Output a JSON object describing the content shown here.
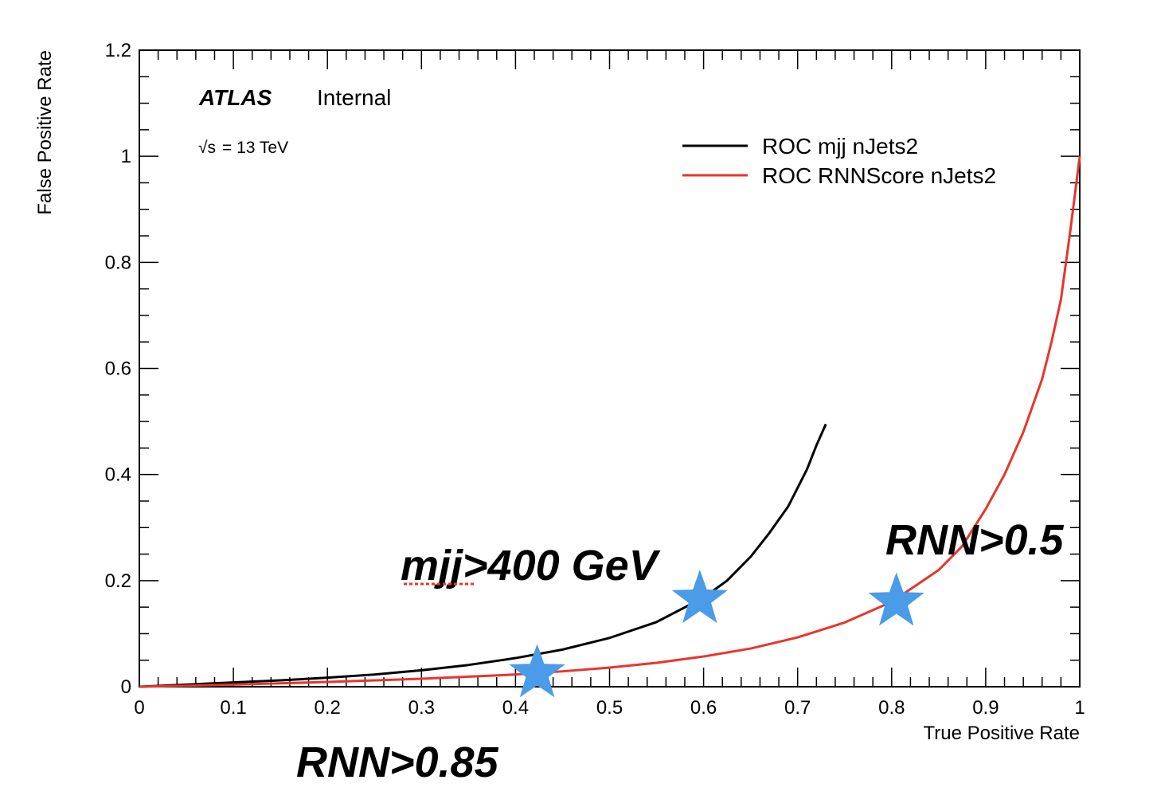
{
  "chart_data": {
    "type": "line",
    "xlabel": "True Positive Rate",
    "ylabel": "False Positive Rate",
    "xlim": [
      0,
      1
    ],
    "ylim": [
      0,
      1.2
    ],
    "x_ticks": [
      "0",
      "0.1",
      "0.2",
      "0.3",
      "0.4",
      "0.5",
      "0.6",
      "0.7",
      "0.8",
      "0.9",
      "1"
    ],
    "y_ticks": [
      "0",
      "0.2",
      "0.4",
      "0.6",
      "0.8",
      "1",
      "1.2"
    ],
    "grid": false,
    "legend_position": "top-right",
    "experiment_label": "ATLAS",
    "status_label": "Internal",
    "energy_label": "= 13 TeV",
    "energy_symbol": "√s",
    "series": [
      {
        "name": "ROC mjj nJets2",
        "color": "#000000",
        "x": [
          0.0,
          0.05,
          0.1,
          0.15,
          0.2,
          0.25,
          0.3,
          0.35,
          0.4,
          0.45,
          0.5,
          0.55,
          0.6,
          0.625,
          0.65,
          0.67,
          0.69,
          0.71,
          0.72,
          0.73
        ],
        "y": [
          0.0,
          0.004,
          0.008,
          0.012,
          0.017,
          0.023,
          0.031,
          0.041,
          0.054,
          0.07,
          0.092,
          0.122,
          0.168,
          0.2,
          0.245,
          0.29,
          0.34,
          0.41,
          0.455,
          0.495
        ]
      },
      {
        "name": "ROC RNNScore nJets2",
        "color": "#e8352b",
        "x": [
          0.0,
          0.1,
          0.2,
          0.3,
          0.4,
          0.45,
          0.5,
          0.55,
          0.6,
          0.65,
          0.7,
          0.75,
          0.8,
          0.85,
          0.875,
          0.9,
          0.92,
          0.94,
          0.96,
          0.97,
          0.98,
          0.99,
          1.0
        ],
        "y": [
          0.0,
          0.004,
          0.009,
          0.015,
          0.023,
          0.029,
          0.036,
          0.045,
          0.057,
          0.072,
          0.093,
          0.121,
          0.16,
          0.22,
          0.265,
          0.335,
          0.4,
          0.48,
          0.58,
          0.65,
          0.73,
          0.86,
          1.0
        ]
      }
    ],
    "markers": [
      {
        "name": "RNN>0.85",
        "x": 0.423,
        "y": 0.025,
        "color": "#4a9be8"
      },
      {
        "name": "mjj>400 GeV",
        "x": 0.596,
        "y": 0.165,
        "color": "#4a9be8"
      },
      {
        "name": "RNN>0.5",
        "x": 0.805,
        "y": 0.16,
        "color": "#4a9be8"
      }
    ],
    "annotations": [
      "mjj>400 GeV",
      "RNN>0.5",
      "RNN>0.85"
    ]
  }
}
